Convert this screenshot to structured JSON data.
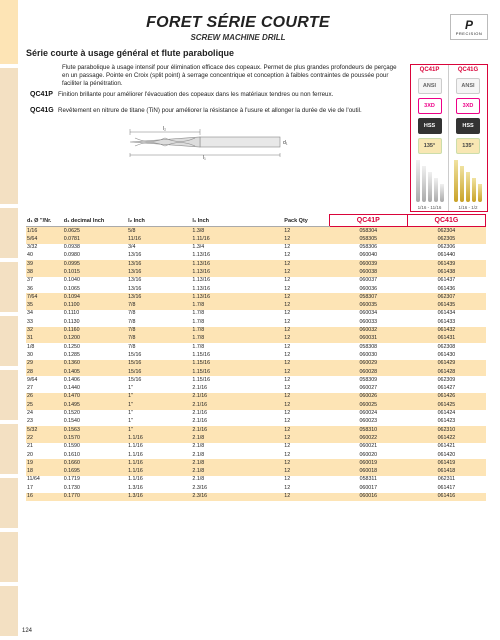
{
  "page_number": "124",
  "header": {
    "title": "FORET SÉRIE COURTE",
    "subtitle": "SCREW MACHINE DRILL",
    "section_title": "Série courte à usage général et flute parabolique",
    "logo_text": "PRECISION"
  },
  "intro": {
    "main": "Flute parabolique à usage intensif pour élimination efficace des copeaux. Permet de plus grandes profondeurs de perçage en un passage. Pointe en Croix (split point) à serrage concentrique et conception à faibles contraintes de poussée pour faciliter la pénétration.",
    "qc41p_code": "QC41P",
    "qc41p_desc": "Finition brillante pour améliorer l'évacuation des copeaux dans les matériaux tendres ou non ferreux.",
    "qc41g_code": "QC41G",
    "qc41g_desc": "Revêtement en nitrure de titane (TiN) pour améliorer la résistance à l'usure et allonger la durée de vie de l'outil."
  },
  "badges": {
    "head_p": "QC41P",
    "head_g": "QC41G",
    "ansi": "ANSI",
    "xd": "3XD",
    "hss": "HSS",
    "deg": "135°",
    "range_p": "1/16 - 11/16",
    "range_g": "1/16 - 1/2"
  },
  "table": {
    "headers": {
      "d1_frac": "d₁\nØ\n\"/Nr.",
      "d1_dec": "d₁\ndecimal\nInch",
      "l2": "l₂\n\nInch",
      "l1": "l₁\n\nInch",
      "pack": "Pack\nQty",
      "p": "QC41P",
      "g": "QC41G"
    },
    "rows": [
      [
        "1/16",
        "0.0625",
        "5/8",
        "1.3/8",
        "12",
        "058304",
        "062304"
      ],
      [
        "5/64",
        "0.0781",
        "11/16",
        "1.11/16",
        "12",
        "058305",
        "062305"
      ],
      [
        "3/32",
        "0.0938",
        "3/4",
        "1.3/4",
        "12",
        "058306",
        "062306"
      ],
      [
        "40",
        "0.0980",
        "13/16",
        "1.13/16",
        "12",
        "060040",
        "061440"
      ],
      [
        "39",
        "0.0995",
        "13/16",
        "1.13/16",
        "12",
        "060039",
        "061439"
      ],
      [
        "38",
        "0.1015",
        "13/16",
        "1.13/16",
        "12",
        "060038",
        "061438"
      ],
      [
        "37",
        "0.1040",
        "13/16",
        "1.13/16",
        "12",
        "060037",
        "061437"
      ],
      [
        "36",
        "0.1065",
        "13/16",
        "1.13/16",
        "12",
        "060036",
        "061436"
      ],
      [
        "7/64",
        "0.1094",
        "13/16",
        "1.13/16",
        "12",
        "058307",
        "062307"
      ],
      [
        "35",
        "0.1100",
        "7/8",
        "1.7/8",
        "12",
        "060035",
        "061435"
      ],
      [
        "34",
        "0.1110",
        "7/8",
        "1.7/8",
        "12",
        "060034",
        "061434"
      ],
      [
        "33",
        "0.1130",
        "7/8",
        "1.7/8",
        "12",
        "060033",
        "061433"
      ],
      [
        "32",
        "0.1160",
        "7/8",
        "1.7/8",
        "12",
        "060032",
        "061432"
      ],
      [
        "31",
        "0.1200",
        "7/8",
        "1.7/8",
        "12",
        "060031",
        "061431"
      ],
      [
        "1/8",
        "0.1250",
        "7/8",
        "1.7/8",
        "12",
        "058308",
        "062308"
      ],
      [
        "30",
        "0.1285",
        "15/16",
        "1.15/16",
        "12",
        "060030",
        "061430"
      ],
      [
        "29",
        "0.1360",
        "15/16",
        "1.15/16",
        "12",
        "060029",
        "061429"
      ],
      [
        "28",
        "0.1405",
        "15/16",
        "1.15/16",
        "12",
        "060028",
        "061428"
      ],
      [
        "9/64",
        "0.1406",
        "15/16",
        "1.15/16",
        "12",
        "058309",
        "062309"
      ],
      [
        "27",
        "0.1440",
        "1\"",
        "2.1/16",
        "12",
        "060027",
        "061427"
      ],
      [
        "26",
        "0.1470",
        "1\"",
        "2.1/16",
        "12",
        "060026",
        "061426"
      ],
      [
        "25",
        "0.1495",
        "1\"",
        "2.1/16",
        "12",
        "060025",
        "061425"
      ],
      [
        "24",
        "0.1520",
        "1\"",
        "2.1/16",
        "12",
        "060024",
        "061424"
      ],
      [
        "23",
        "0.1540",
        "1\"",
        "2.1/16",
        "12",
        "060023",
        "061423"
      ],
      [
        "5/32",
        "0.1563",
        "1\"",
        "2.1/16",
        "12",
        "058310",
        "062310"
      ],
      [
        "22",
        "0.1570",
        "1.1/16",
        "2.1/8",
        "12",
        "060022",
        "061422"
      ],
      [
        "21",
        "0.1590",
        "1.1/16",
        "2.1/8",
        "12",
        "060021",
        "061421"
      ],
      [
        "20",
        "0.1610",
        "1.1/16",
        "2.1/8",
        "12",
        "060020",
        "061420"
      ],
      [
        "19",
        "0.1660",
        "1.1/16",
        "2.1/8",
        "12",
        "060019",
        "061419"
      ],
      [
        "18",
        "0.1695",
        "1.1/16",
        "2.1/8",
        "12",
        "060018",
        "061418"
      ],
      [
        "11/64",
        "0.1719",
        "1.1/16",
        "2.1/8",
        "12",
        "058311",
        "062311"
      ],
      [
        "17",
        "0.1730",
        "1.3/16",
        "2.3/16",
        "12",
        "060017",
        "061417"
      ],
      [
        "16",
        "0.1770",
        "1.3/16",
        "2.3/16",
        "12",
        "060016",
        "061416"
      ]
    ]
  },
  "left_tabs_heights": [
    68,
    140,
    54,
    54,
    54,
    54,
    54,
    54,
    54,
    54
  ]
}
